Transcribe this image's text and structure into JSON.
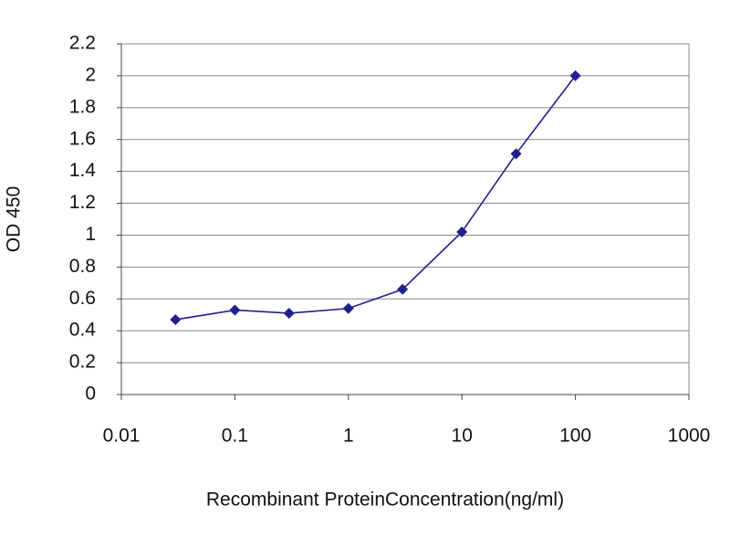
{
  "chart_data": {
    "type": "line",
    "x_label": "Recombinant ProteinConcentration(ng/ml)",
    "y_label": "OD 450",
    "x": [
      0.03,
      0.1,
      0.3,
      1,
      3,
      10,
      30,
      100
    ],
    "series": [
      {
        "color": "#1f1f8f",
        "values": [
          0.47,
          0.53,
          0.51,
          0.54,
          0.66,
          1.02,
          1.51,
          2.0
        ]
      }
    ],
    "xscale": "log",
    "xlim": [
      0.01,
      1000
    ],
    "xticks": [
      0.01,
      0.1,
      1,
      10,
      100,
      1000
    ],
    "ylim": [
      0,
      2.2
    ],
    "yticks": [
      0,
      0.2,
      0.4,
      0.6,
      0.8,
      1,
      1.2,
      1.4,
      1.6,
      1.8,
      2,
      2.2
    ],
    "grid": true
  }
}
